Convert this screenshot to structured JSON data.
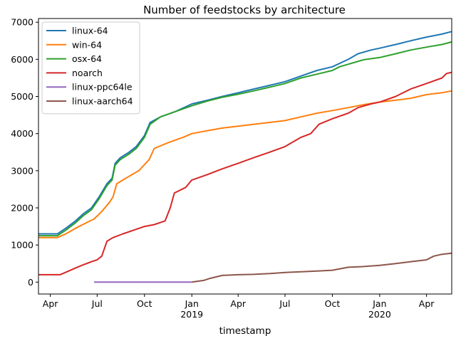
{
  "chart_data": {
    "type": "line",
    "title": "Number of feedstocks by architecture",
    "xlabel": "timestamp",
    "ylabel": "",
    "xlim": [
      "2018-03-09",
      "2020-05-20"
    ],
    "ylim": [
      -320,
      7100
    ],
    "grid": false,
    "legend_position": "top-left",
    "yticks": [
      0,
      1000,
      2000,
      3000,
      4000,
      5000,
      6000,
      7000
    ],
    "xticks": [
      {
        "date": "2018-04-01",
        "label": "Apr",
        "sublabel": ""
      },
      {
        "date": "2018-07-01",
        "label": "Jul",
        "sublabel": ""
      },
      {
        "date": "2018-10-01",
        "label": "Oct",
        "sublabel": ""
      },
      {
        "date": "2019-01-01",
        "label": "Jan",
        "sublabel": "2019"
      },
      {
        "date": "2019-04-01",
        "label": "Apr",
        "sublabel": ""
      },
      {
        "date": "2019-07-01",
        "label": "Jul",
        "sublabel": ""
      },
      {
        "date": "2019-10-01",
        "label": "Oct",
        "sublabel": ""
      },
      {
        "date": "2020-01-01",
        "label": "Jan",
        "sublabel": "2020"
      },
      {
        "date": "2020-04-01",
        "label": "Apr",
        "sublabel": ""
      }
    ],
    "series": [
      {
        "name": "linux-64",
        "color": "#1f77b4",
        "points": [
          [
            "2018-03-09",
            1300
          ],
          [
            "2018-04-15",
            1300
          ],
          [
            "2018-05-01",
            1450
          ],
          [
            "2018-05-20",
            1650
          ],
          [
            "2018-06-05",
            1850
          ],
          [
            "2018-06-20",
            2000
          ],
          [
            "2018-07-05",
            2300
          ],
          [
            "2018-07-20",
            2650
          ],
          [
            "2018-07-30",
            2800
          ],
          [
            "2018-08-05",
            3200
          ],
          [
            "2018-08-15",
            3350
          ],
          [
            "2018-09-01",
            3500
          ],
          [
            "2018-09-15",
            3650
          ],
          [
            "2018-10-01",
            3950
          ],
          [
            "2018-10-12",
            4300
          ],
          [
            "2018-11-01",
            4450
          ],
          [
            "2018-12-01",
            4600
          ],
          [
            "2019-01-01",
            4800
          ],
          [
            "2019-02-01",
            4900
          ],
          [
            "2019-03-01",
            5000
          ],
          [
            "2019-04-01",
            5100
          ],
          [
            "2019-05-01",
            5200
          ],
          [
            "2019-06-01",
            5300
          ],
          [
            "2019-07-01",
            5400
          ],
          [
            "2019-08-01",
            5550
          ],
          [
            "2019-09-01",
            5700
          ],
          [
            "2019-10-01",
            5800
          ],
          [
            "2019-11-01",
            6000
          ],
          [
            "2019-11-20",
            6150
          ],
          [
            "2019-12-15",
            6250
          ],
          [
            "2020-01-01",
            6300
          ],
          [
            "2020-02-01",
            6400
          ],
          [
            "2020-03-01",
            6500
          ],
          [
            "2020-04-01",
            6600
          ],
          [
            "2020-05-01",
            6680
          ],
          [
            "2020-05-20",
            6750
          ]
        ]
      },
      {
        "name": "win-64",
        "color": "#ff7f0e",
        "points": [
          [
            "2018-03-09",
            1200
          ],
          [
            "2018-04-15",
            1200
          ],
          [
            "2018-05-01",
            1300
          ],
          [
            "2018-05-20",
            1450
          ],
          [
            "2018-06-10",
            1600
          ],
          [
            "2018-06-25",
            1700
          ],
          [
            "2018-07-10",
            1900
          ],
          [
            "2018-07-25",
            2150
          ],
          [
            "2018-08-01",
            2300
          ],
          [
            "2018-08-08",
            2650
          ],
          [
            "2018-08-20",
            2750
          ],
          [
            "2018-09-01",
            2850
          ],
          [
            "2018-09-20",
            3000
          ],
          [
            "2018-10-10",
            3300
          ],
          [
            "2018-10-20",
            3600
          ],
          [
            "2018-11-15",
            3750
          ],
          [
            "2018-12-15",
            3900
          ],
          [
            "2019-01-01",
            4000
          ],
          [
            "2019-02-01",
            4080
          ],
          [
            "2019-03-01",
            4150
          ],
          [
            "2019-04-01",
            4200
          ],
          [
            "2019-05-01",
            4250
          ],
          [
            "2019-06-01",
            4300
          ],
          [
            "2019-07-01",
            4350
          ],
          [
            "2019-08-01",
            4450
          ],
          [
            "2019-09-01",
            4550
          ],
          [
            "2019-10-01",
            4620
          ],
          [
            "2019-11-01",
            4700
          ],
          [
            "2019-12-01",
            4780
          ],
          [
            "2020-01-01",
            4850
          ],
          [
            "2020-02-01",
            4900
          ],
          [
            "2020-03-01",
            4950
          ],
          [
            "2020-04-01",
            5050
          ],
          [
            "2020-05-01",
            5100
          ],
          [
            "2020-05-20",
            5150
          ]
        ]
      },
      {
        "name": "osx-64",
        "color": "#2ca02c",
        "points": [
          [
            "2018-03-09",
            1250
          ],
          [
            "2018-04-15",
            1250
          ],
          [
            "2018-05-01",
            1400
          ],
          [
            "2018-05-20",
            1600
          ],
          [
            "2018-06-05",
            1800
          ],
          [
            "2018-06-20",
            1950
          ],
          [
            "2018-07-05",
            2250
          ],
          [
            "2018-07-20",
            2600
          ],
          [
            "2018-07-30",
            2750
          ],
          [
            "2018-08-05",
            3150
          ],
          [
            "2018-08-15",
            3300
          ],
          [
            "2018-09-01",
            3450
          ],
          [
            "2018-09-15",
            3600
          ],
          [
            "2018-10-01",
            3900
          ],
          [
            "2018-10-12",
            4250
          ],
          [
            "2018-11-01",
            4450
          ],
          [
            "2018-12-01",
            4600
          ],
          [
            "2019-01-01",
            4750
          ],
          [
            "2019-02-01",
            4880
          ],
          [
            "2019-03-01",
            4980
          ],
          [
            "2019-04-01",
            5060
          ],
          [
            "2019-05-01",
            5150
          ],
          [
            "2019-06-01",
            5250
          ],
          [
            "2019-07-01",
            5350
          ],
          [
            "2019-08-01",
            5500
          ],
          [
            "2019-09-01",
            5600
          ],
          [
            "2019-10-01",
            5700
          ],
          [
            "2019-10-15",
            5800
          ],
          [
            "2019-12-01",
            5990
          ],
          [
            "2020-01-01",
            6050
          ],
          [
            "2020-02-01",
            6150
          ],
          [
            "2020-03-01",
            6250
          ],
          [
            "2020-04-01",
            6330
          ],
          [
            "2020-05-01",
            6400
          ],
          [
            "2020-05-20",
            6470
          ]
        ]
      },
      {
        "name": "noarch",
        "color": "#d62728",
        "points": [
          [
            "2018-03-09",
            200
          ],
          [
            "2018-04-20",
            200
          ],
          [
            "2018-05-15",
            350
          ],
          [
            "2018-06-01",
            450
          ],
          [
            "2018-06-20",
            550
          ],
          [
            "2018-07-01",
            600
          ],
          [
            "2018-07-10",
            700
          ],
          [
            "2018-07-20",
            1100
          ],
          [
            "2018-08-01",
            1200
          ],
          [
            "2018-08-20",
            1300
          ],
          [
            "2018-09-10",
            1400
          ],
          [
            "2018-10-01",
            1500
          ],
          [
            "2018-10-20",
            1550
          ],
          [
            "2018-11-10",
            1650
          ],
          [
            "2018-11-20",
            2000
          ],
          [
            "2018-11-28",
            2400
          ],
          [
            "2018-12-20",
            2550
          ],
          [
            "2019-01-01",
            2750
          ],
          [
            "2019-02-01",
            2900
          ],
          [
            "2019-03-01",
            3050
          ],
          [
            "2019-04-01",
            3200
          ],
          [
            "2019-05-01",
            3350
          ],
          [
            "2019-06-01",
            3500
          ],
          [
            "2019-07-01",
            3650
          ],
          [
            "2019-08-01",
            3900
          ],
          [
            "2019-08-20",
            4000
          ],
          [
            "2019-09-05",
            4250
          ],
          [
            "2019-10-01",
            4400
          ],
          [
            "2019-11-01",
            4550
          ],
          [
            "2019-11-20",
            4700
          ],
          [
            "2019-12-15",
            4800
          ],
          [
            "2020-01-01",
            4850
          ],
          [
            "2020-02-01",
            5000
          ],
          [
            "2020-03-01",
            5200
          ],
          [
            "2020-04-01",
            5350
          ],
          [
            "2020-05-01",
            5500
          ],
          [
            "2020-05-10",
            5620
          ],
          [
            "2020-05-20",
            5650
          ]
        ]
      },
      {
        "name": "linux-ppc64le",
        "color": "#9467bd",
        "points": [
          [
            "2018-06-25",
            0
          ],
          [
            "2019-01-01",
            0
          ]
        ]
      },
      {
        "name": "linux-aarch64",
        "color": "#8c564b",
        "points": [
          [
            "2019-01-01",
            0
          ],
          [
            "2019-01-25",
            50
          ],
          [
            "2019-02-05",
            100
          ],
          [
            "2019-03-01",
            180
          ],
          [
            "2019-04-01",
            200
          ],
          [
            "2019-05-01",
            210
          ],
          [
            "2019-06-01",
            230
          ],
          [
            "2019-07-01",
            260
          ],
          [
            "2019-08-01",
            280
          ],
          [
            "2019-09-01",
            300
          ],
          [
            "2019-10-01",
            320
          ],
          [
            "2019-11-01",
            400
          ],
          [
            "2019-12-01",
            420
          ],
          [
            "2020-01-01",
            450
          ],
          [
            "2020-02-01",
            500
          ],
          [
            "2020-03-01",
            550
          ],
          [
            "2020-04-01",
            600
          ],
          [
            "2020-04-15",
            700
          ],
          [
            "2020-05-01",
            750
          ],
          [
            "2020-05-20",
            780
          ]
        ]
      }
    ]
  }
}
